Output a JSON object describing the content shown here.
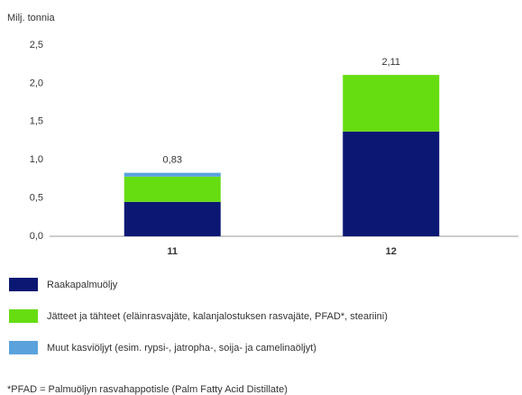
{
  "chart_data": {
    "type": "stacked_bar",
    "y_label": "Milj. tonnia",
    "categories": [
      "11",
      "12"
    ],
    "series": [
      {
        "name": "Raakapalmuöljy",
        "color": "#0b1873",
        "values": [
          0.45,
          1.37
        ]
      },
      {
        "name": "Jätteet ja tähteet (eläinrasvajäte, kalanjalostuksen rasvajäte, PFAD*, steariini)",
        "color": "#66dd11",
        "values": [
          0.33,
          0.74
        ]
      },
      {
        "name": "Muut kasviöljyt (esim. rypsi-, jatropha-, soija- ja camelinaöljyt)",
        "color": "#5aa2dc",
        "values": [
          0.05,
          0
        ]
      }
    ],
    "totals": {
      "values": [
        0.83,
        2.11
      ],
      "value_labels": [
        "0,83",
        "2,11"
      ]
    },
    "ylim": [
      0,
      2.5
    ],
    "yticks": [
      {
        "value": 0,
        "label": "0,0"
      },
      {
        "value": 0.5,
        "label": "0,5"
      },
      {
        "value": 1,
        "label": "1,0"
      },
      {
        "value": 1.5,
        "label": "1,5"
      },
      {
        "value": 2,
        "label": "2,0"
      },
      {
        "value": 2.5,
        "label": "2,5"
      }
    ],
    "footnote": "*PFAD = Palmuöljyn rasvahappotisle (Palm Fatty Acid Distillate)"
  }
}
